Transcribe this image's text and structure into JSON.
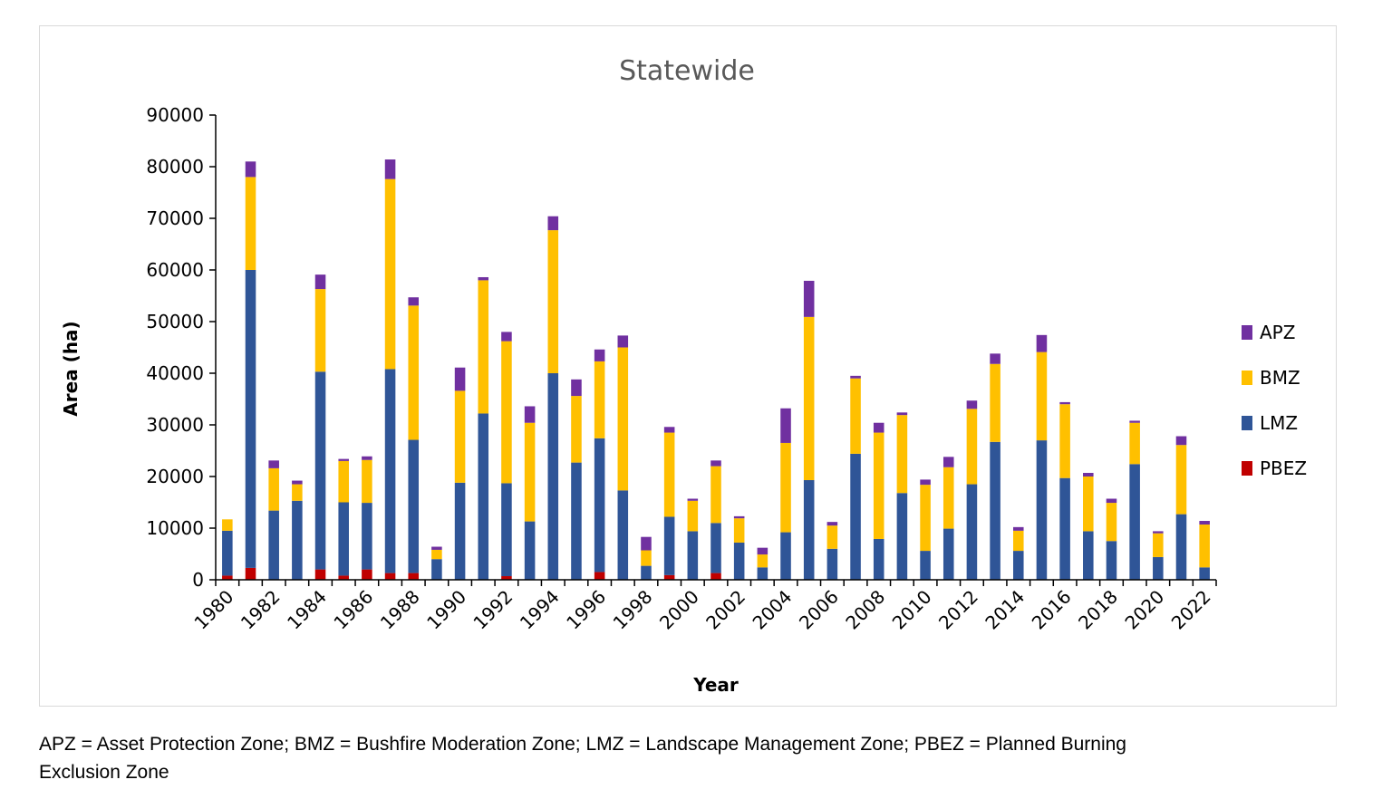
{
  "chart_data": {
    "type": "bar",
    "stacked": true,
    "title": "Statewide",
    "xlabel": "Year",
    "ylabel": "Area (ha)",
    "ylim": [
      0,
      90000
    ],
    "yticks": [
      "0",
      "10000",
      "20000",
      "30000",
      "40000",
      "50000",
      "60000",
      "70000",
      "80000",
      "90000"
    ],
    "grid": false,
    "legend_position": "right",
    "categories": [
      "1980",
      "1981",
      "1982",
      "1983",
      "1984",
      "1985",
      "1986",
      "1987",
      "1988",
      "1989",
      "1990",
      "1991",
      "1992",
      "1993",
      "1994",
      "1995",
      "1996",
      "1997",
      "1998",
      "1999",
      "2000",
      "2001",
      "2002",
      "2003",
      "2004",
      "2005",
      "2006",
      "2007",
      "2008",
      "2009",
      "2010",
      "2011",
      "2012",
      "2013",
      "2014",
      "2015",
      "2016",
      "2017",
      "2018",
      "2019",
      "2020",
      "2021",
      "2022"
    ],
    "xtick_labels": [
      "1980",
      "",
      "1982",
      "",
      "1984",
      "",
      "1986",
      "",
      "1988",
      "",
      "1990",
      "",
      "1992",
      "",
      "1994",
      "",
      "1996",
      "",
      "1998",
      "",
      "2000",
      "",
      "2002",
      "",
      "2004",
      "",
      "2006",
      "",
      "2008",
      "",
      "2010",
      "",
      "2012",
      "",
      "2014",
      "",
      "2016",
      "",
      "2018",
      "",
      "2020",
      "",
      "2022"
    ],
    "series": [
      {
        "name": "PBEZ",
        "color": "#c00000",
        "values": [
          800,
          2300,
          0,
          0,
          2000,
          800,
          2000,
          1300,
          1300,
          0,
          0,
          0,
          700,
          0,
          0,
          0,
          1500,
          0,
          0,
          900,
          0,
          1300,
          0,
          0,
          0,
          0,
          0,
          0,
          0,
          0,
          0,
          0,
          0,
          0,
          0,
          0,
          0,
          0,
          0,
          0,
          0,
          0,
          0
        ]
      },
      {
        "name": "LMZ",
        "color": "#2f5597",
        "values": [
          8700,
          57700,
          13400,
          15300,
          38300,
          14200,
          12900,
          39500,
          25800,
          4000,
          18800,
          32200,
          18000,
          11300,
          40000,
          22700,
          25900,
          17300,
          2700,
          11300,
          9400,
          9700,
          7200,
          2400,
          9200,
          19300,
          6000,
          24400,
          7900,
          16800,
          5600,
          9900,
          18500,
          26700,
          5600,
          27000,
          19700,
          9400,
          7500,
          22400,
          4400,
          12700,
          2400
        ]
      },
      {
        "name": "BMZ",
        "color": "#ffc000",
        "values": [
          2200,
          18000,
          8200,
          3200,
          16000,
          8000,
          8300,
          36800,
          26000,
          1800,
          17800,
          25800,
          27500,
          19100,
          27700,
          12900,
          14900,
          27700,
          3000,
          16300,
          5900,
          11000,
          4700,
          2500,
          17300,
          31600,
          4500,
          14600,
          20600,
          15100,
          12800,
          11900,
          14600,
          15100,
          3900,
          17100,
          14300,
          10600,
          7400,
          8000,
          4600,
          13400,
          8300
        ]
      },
      {
        "name": "APZ",
        "color": "#7030a0",
        "values": [
          0,
          3000,
          1500,
          700,
          2800,
          400,
          700,
          3800,
          1600,
          600,
          4500,
          600,
          1800,
          3200,
          2700,
          3200,
          2300,
          2300,
          2600,
          1100,
          400,
          1100,
          400,
          1300,
          6700,
          7000,
          700,
          500,
          1900,
          500,
          1000,
          2000,
          1600,
          2000,
          700,
          3300,
          400,
          700,
          800,
          400,
          400,
          1700,
          700
        ]
      }
    ],
    "legend_order": [
      "APZ",
      "BMZ",
      "LMZ",
      "PBEZ"
    ]
  },
  "footnote": {
    "line1": "APZ = Asset Protection Zone; BMZ = Bushfire Moderation Zone; LMZ = Landscape Management Zone; PBEZ = Planned Burning",
    "line2": "Exclusion Zone"
  }
}
